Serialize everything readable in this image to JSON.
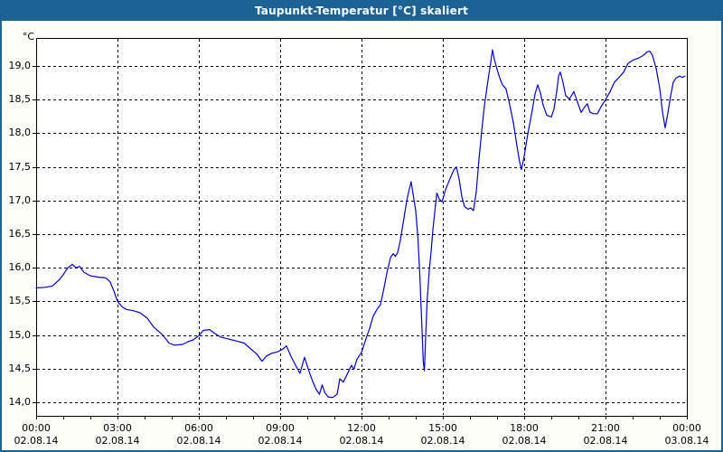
{
  "window": {
    "title": "Taupunkt-Temperatur [°C] skaliert"
  },
  "colors": {
    "titlebar": "#1d6295",
    "frame": "#1d6295",
    "line": "#0000cc",
    "grid": "#000000",
    "plot_background": "#ffffff",
    "page_background": "#fcfdf7"
  },
  "y_axis": {
    "unit": "°C",
    "tick_labels": [
      "19,0",
      "18,5",
      "18,0",
      "17,5",
      "17,0",
      "16,5",
      "16,0",
      "15,5",
      "15,0",
      "14,5",
      "14,0"
    ]
  },
  "x_axis": {
    "major_ticks": [
      {
        "time": "00:00",
        "date": "02.08.14"
      },
      {
        "time": "03:00",
        "date": "02.08.14"
      },
      {
        "time": "06:00",
        "date": "02.08.14"
      },
      {
        "time": "09:00",
        "date": "02.08.14"
      },
      {
        "time": "12:00",
        "date": "02.08.14"
      },
      {
        "time": "15:00",
        "date": "02.08.14"
      },
      {
        "time": "18:00",
        "date": "02.08.14"
      },
      {
        "time": "21:00",
        "date": "02.08.14"
      },
      {
        "time": "00:00",
        "date": "03.08.14"
      }
    ]
  },
  "chart_data": {
    "type": "line",
    "title": "Taupunkt-Temperatur [°C] skaliert",
    "xlabel": "",
    "ylabel": "°C",
    "x_unit": "hours since 02.08.14 00:00",
    "xlim": [
      0,
      24
    ],
    "ylim": [
      13.8,
      19.42
    ],
    "ytick_min": 14.0,
    "ytick_max": 19.0,
    "ytick_step": 0.5,
    "xgrid_step_hours": 3,
    "xtick_step_hours": 1,
    "grid": "dashed",
    "legend_position": "none",
    "series": [
      {
        "name": "Taupunkt-Temperatur",
        "color": "#0000cc",
        "x": [
          0,
          0.35,
          0.6,
          0.85,
          1,
          1.17,
          1.33,
          1.47,
          1.6,
          1.77,
          2,
          2.3,
          2.57,
          2.73,
          2.87,
          3,
          3.17,
          3.33,
          3.6,
          3.83,
          4.1,
          4.33,
          4.67,
          4.9,
          5.1,
          5.4,
          5.6,
          5.8,
          6,
          6.17,
          6.4,
          6.6,
          6.8,
          7.1,
          7.4,
          7.67,
          7.9,
          8.13,
          8.33,
          8.5,
          8.7,
          8.9,
          9.1,
          9.23,
          9.4,
          9.57,
          9.73,
          9.9,
          10.03,
          10.2,
          10.33,
          10.45,
          10.55,
          10.65,
          10.77,
          10.93,
          11.1,
          11.2,
          11.33,
          11.5,
          11.63,
          11.72,
          11.83,
          12,
          12.17,
          12.3,
          12.43,
          12.57,
          12.7,
          12.83,
          12.95,
          13.07,
          13.17,
          13.25,
          13.33,
          13.43,
          13.55,
          13.67,
          13.77,
          13.83,
          13.92,
          14,
          14.08,
          14.15,
          14.22,
          14.28,
          14.32,
          14.37,
          14.42,
          14.5,
          14.57,
          14.63,
          14.72,
          14.78,
          14.87,
          14.97,
          15.1,
          15.27,
          15.4,
          15.5,
          15.6,
          15.7,
          15.8,
          15.93,
          16.03,
          16.13,
          16.23,
          16.33,
          16.43,
          16.53,
          16.67,
          16.77,
          16.83,
          16.9,
          17,
          17.1,
          17.2,
          17.33,
          17.47,
          17.6,
          17.73,
          17.83,
          17.9,
          18,
          18.13,
          18.27,
          18.4,
          18.5,
          18.6,
          18.7,
          18.83,
          19,
          19.1,
          19.2,
          19.27,
          19.33,
          19.43,
          19.53,
          19.67,
          19.83,
          19.97,
          20.1,
          20.23,
          20.33,
          20.43,
          20.57,
          20.7,
          20.83,
          21,
          21.17,
          21.33,
          21.5,
          21.67,
          21.83,
          22.03,
          22.23,
          22.4,
          22.53,
          22.63,
          22.73,
          22.87,
          23,
          23.1,
          23.2,
          23.3,
          23.4,
          23.5,
          23.6,
          23.73,
          23.83,
          23.93
        ],
        "y": [
          15.7,
          15.71,
          15.73,
          15.82,
          15.9,
          16,
          16.05,
          16,
          16.02,
          15.93,
          15.88,
          15.86,
          15.85,
          15.79,
          15.65,
          15.5,
          15.42,
          15.38,
          15.36,
          15.33,
          15.25,
          15.12,
          15,
          14.88,
          14.85,
          14.86,
          14.9,
          14.93,
          14.99,
          15.07,
          15.08,
          15.02,
          14.97,
          14.94,
          14.91,
          14.88,
          14.8,
          14.72,
          14.61,
          14.69,
          14.73,
          14.75,
          14.79,
          14.84,
          14.68,
          14.55,
          14.43,
          14.67,
          14.5,
          14.31,
          14.19,
          14.12,
          14.26,
          14.14,
          14.08,
          14.07,
          14.12,
          14.35,
          14.3,
          14.44,
          14.55,
          14.49,
          14.64,
          14.74,
          14.95,
          15.1,
          15.28,
          15.38,
          15.45,
          15.7,
          15.95,
          16.15,
          16.21,
          16.17,
          16.22,
          16.4,
          16.7,
          17,
          17.18,
          17.28,
          17.05,
          16.85,
          16.45,
          15.9,
          15.2,
          14.6,
          14.47,
          15,
          15.5,
          15.96,
          16.25,
          16.55,
          16.9,
          17.11,
          17.02,
          16.98,
          17.16,
          17.33,
          17.45,
          17.5,
          17.32,
          17.06,
          16.91,
          16.87,
          16.89,
          16.85,
          17.12,
          17.6,
          18.02,
          18.4,
          18.8,
          19.06,
          19.24,
          19.1,
          18.95,
          18.82,
          18.72,
          18.66,
          18.42,
          18.16,
          17.82,
          17.58,
          17.46,
          17.66,
          17.98,
          18.28,
          18.58,
          18.72,
          18.6,
          18.42,
          18.27,
          18.24,
          18.36,
          18.62,
          18.85,
          18.91,
          18.76,
          18.56,
          18.51,
          18.62,
          18.46,
          18.31,
          18.39,
          18.44,
          18.31,
          18.29,
          18.29,
          18.39,
          18.5,
          18.62,
          18.76,
          18.83,
          18.91,
          19.04,
          19.09,
          19.12,
          19.16,
          19.21,
          19.22,
          19.16,
          18.96,
          18.67,
          18.32,
          18.08,
          18.3,
          18.55,
          18.76,
          18.82,
          18.85,
          18.83,
          18.85
        ]
      }
    ]
  }
}
